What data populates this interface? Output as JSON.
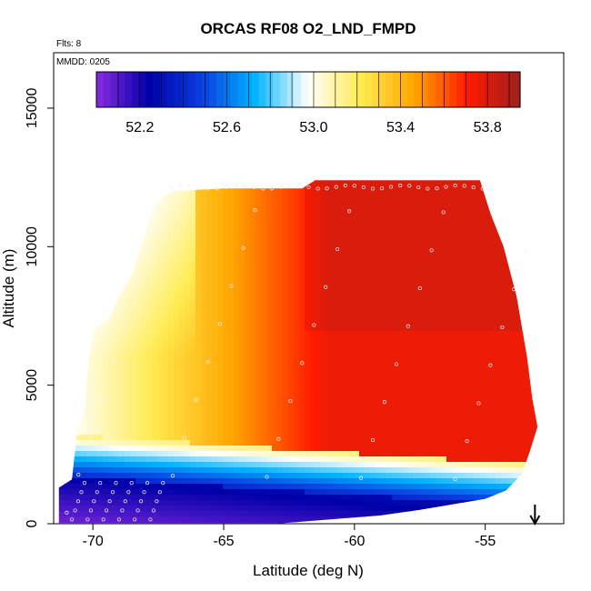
{
  "chart_data": {
    "type": "heatmap",
    "title": "ORCAS RF08 O2_LND_FMPD",
    "annotations": [
      "Flts: 8",
      "MMDD: 0205"
    ],
    "xlabel": "Latitude (deg N)",
    "ylabel": "Altitude (m)",
    "xlim": [
      -71.5,
      -52.0
    ],
    "ylim": [
      0,
      17000
    ],
    "x_ticks": [
      -70,
      -65,
      -60,
      -55
    ],
    "x_tick_labels": [
      "-70",
      "-65",
      "-60",
      "-55"
    ],
    "y_ticks": [
      0,
      5000,
      10000,
      15000
    ],
    "y_tick_labels": [
      "0",
      "5000",
      "10000",
      "15000"
    ],
    "colorbar": {
      "position": "top",
      "range": [
        52.0,
        53.95
      ],
      "ticks": [
        52.2,
        52.6,
        53.0,
        53.4,
        53.8
      ],
      "tick_labels": [
        "52.2",
        "52.6",
        "53.0",
        "53.4",
        "53.8"
      ],
      "colors": [
        "#8a2be2",
        "#0000a8",
        "#0b3fe0",
        "#00b4ff",
        "#ffffff",
        "#ffeb50",
        "#ffa500",
        "#ff1a00",
        "#9e1f1f"
      ]
    },
    "series": [
      {
        "lat": -71.2,
        "alt_range": [
          200,
          1600
        ],
        "value": 52.15
      },
      {
        "lat": -70.5,
        "alt_range": [
          100,
          2300
        ],
        "value": 52.25
      },
      {
        "lat": -69.0,
        "alt_range": [
          150,
          1000
        ],
        "value": 52.1
      },
      {
        "lat": -67.0,
        "alt_range": [
          1800,
          3500
        ],
        "value": 52.7
      },
      {
        "lat": -65.0,
        "alt_range": [
          4500,
          6000
        ],
        "value": 53.2
      },
      {
        "lat": -62.0,
        "alt_range": [
          6000,
          12000
        ],
        "value": 53.75
      },
      {
        "lat": -57.0,
        "alt_range": [
          3500,
          12000
        ],
        "value": 53.7
      }
    ],
    "arrow_marker": {
      "lat": -53.1,
      "direction": "down"
    }
  }
}
